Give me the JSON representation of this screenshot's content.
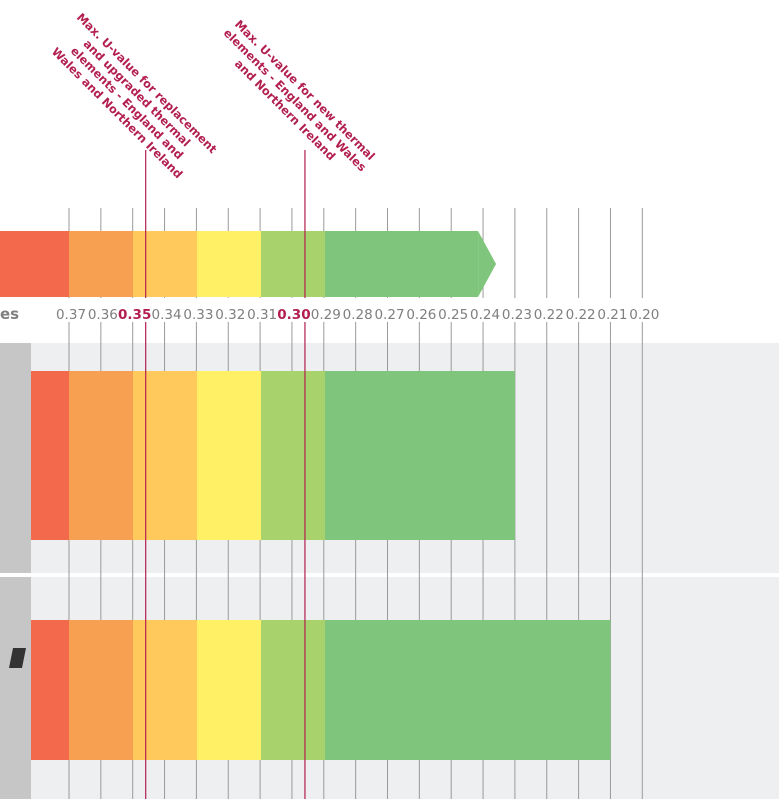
{
  "chart_data": {
    "type": "bar",
    "axis_caption": "es",
    "x_ticks": [
      "0.37",
      "0.36",
      "0.35",
      "0.34",
      "0.33",
      "0.32",
      "0.31",
      "0.30",
      "0.29",
      "0.28",
      "0.27",
      "0.26",
      "0.25",
      "0.24",
      "0.23",
      "0.22",
      "0.22",
      "0.21",
      "0.20"
    ],
    "major_ticks": [
      "0.35",
      "0.30"
    ],
    "color_bands": [
      {
        "color": "#f26a4b"
      },
      {
        "color": "#f7a051"
      },
      {
        "color": "#ffc95c"
      },
      {
        "color": "#fff066"
      },
      {
        "color": "#a8d26b"
      },
      {
        "color": "#7fc67c"
      }
    ],
    "scale_arrow": {
      "end_value": 0.24
    },
    "bars": [
      {
        "end_value": 0.23
      },
      {
        "end_value": 0.2
      }
    ],
    "reference_lines": [
      {
        "value": 0.35,
        "label": "Max. U-value for replacement and upgraded thermal elements - England and Wales and Northern Ireland",
        "label_lines": [
          "Max. U-value for replacement",
          "and upgraded thermal",
          "elements - England and",
          "Wales and Northern Ireland"
        ]
      },
      {
        "value": 0.3,
        "label": "Max. U-value for new thermal elements - England and Wales and Northern Ireland",
        "label_lines": [
          "Max. U-value for new thermal",
          "elements - England and Wales",
          "and Northern Ireland"
        ]
      }
    ],
    "colors": {
      "reference_line": "#b21f4f",
      "grid": "#9a9a9a",
      "row_background": "#eeeff0",
      "row_header": "#c6c6c6",
      "label_gray": "#7f7f7f"
    }
  }
}
